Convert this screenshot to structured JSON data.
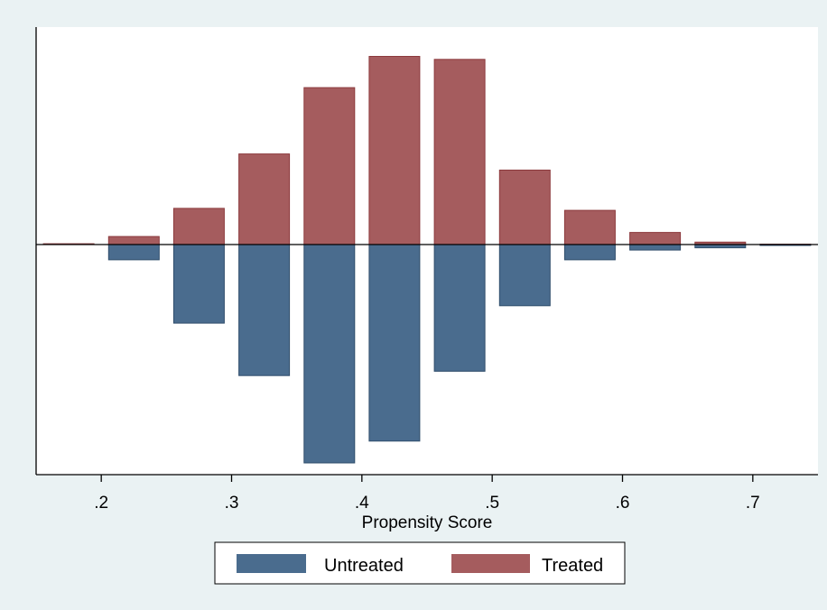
{
  "chart_data": {
    "type": "bar",
    "title": "",
    "xlabel": "Propensity Score",
    "ylabel": "",
    "xlim": [
      0.15,
      0.75
    ],
    "bin_width": 0.05,
    "x_ticks": [
      0.2,
      0.3,
      0.4,
      0.5,
      0.6,
      0.7
    ],
    "x_tick_labels": [
      ".2",
      ".3",
      ".4",
      ".5",
      ".6",
      ".7"
    ],
    "bin_centers": [
      0.175,
      0.225,
      0.275,
      0.325,
      0.375,
      0.425,
      0.475,
      0.525,
      0.575,
      0.625,
      0.675,
      0.725
    ],
    "grid": false,
    "legend_position": "bottom",
    "series": [
      {
        "name": "Untreated",
        "direction": "down",
        "color": "#4a6c8e",
        "values": [
          0.0,
          0.07,
          0.36,
          0.6,
          1.0,
          0.9,
          0.58,
          0.28,
          0.07,
          0.025,
          0.015,
          0.004
        ]
      },
      {
        "name": "Treated",
        "direction": "up",
        "color": "#a55c5e",
        "values": [
          0.004,
          0.04,
          0.18,
          0.45,
          0.78,
          0.935,
          0.92,
          0.37,
          0.17,
          0.06,
          0.012,
          0.002
        ]
      }
    ]
  }
}
